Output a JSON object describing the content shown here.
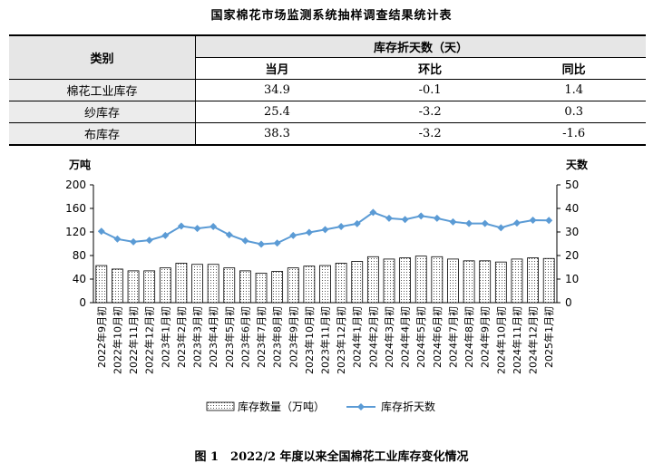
{
  "title": "国家棉花市场监测系统抽样调查结果统计表",
  "table": {
    "category_header": "类别",
    "group_header": "库存折天数（天）",
    "columns": [
      "当月",
      "环比",
      "同比"
    ],
    "rows": [
      {
        "label": "棉花工业库存",
        "current": "34.9",
        "mom": "-0.1",
        "yoy": "1.4"
      },
      {
        "label": "纱库存",
        "current": "25.4",
        "mom": "-3.2",
        "yoy": "0.3"
      },
      {
        "label": "布库存",
        "current": "38.3",
        "mom": "-3.2",
        "yoy": "-1.6"
      }
    ]
  },
  "chart_data": {
    "type": "bar",
    "left_axis_label": "万吨",
    "right_axis_label": "天数",
    "ylim_left": [
      0,
      200
    ],
    "ylim_right": [
      0,
      50
    ],
    "left_ticks": [
      0,
      40,
      80,
      120,
      160,
      200
    ],
    "right_ticks": [
      0,
      10,
      20,
      30,
      40,
      50
    ],
    "categories": [
      "2022年9月初",
      "2022年10月初",
      "2022年11月初",
      "2022年12月初",
      "2023年1月初",
      "2023年2月初",
      "2023年3月初",
      "2023年4月初",
      "2023年5月初",
      "2023年6月初",
      "2023年7月初",
      "2023年8月初",
      "2023年9月初",
      "2023年10月初",
      "2023年11月初",
      "2023年12月初",
      "2024年1月初",
      "2024年2月初",
      "2024年3月初",
      "2024年4月初",
      "2024年5月初",
      "2024年6月初",
      "2024年7月初",
      "2024年8月初",
      "2024年9月初",
      "2024年10月初",
      "2024年11月初",
      "2024年12月初",
      "2025年1月初"
    ],
    "series": [
      {
        "name": "库存数量（万吨）",
        "type": "bar",
        "axis": "left",
        "values": [
          63,
          57,
          54,
          54,
          59,
          67,
          65,
          65,
          59,
          54,
          50,
          53,
          59,
          62,
          63,
          67,
          70,
          78,
          74,
          76,
          79,
          78,
          74,
          71,
          71,
          69,
          74,
          76,
          75
        ]
      },
      {
        "name": "库存折天数",
        "type": "line",
        "axis": "right",
        "values": [
          30.3,
          27.0,
          25.8,
          26.5,
          28.5,
          32.5,
          31.5,
          32.3,
          28.8,
          26.3,
          24.8,
          25.3,
          28.5,
          29.8,
          31.0,
          32.3,
          33.5,
          38.3,
          35.8,
          35.3,
          36.8,
          35.8,
          34.3,
          33.6,
          33.6,
          31.8,
          33.8,
          35.0,
          34.9
        ]
      }
    ],
    "colors": {
      "bar_fill": "#ffffff",
      "bar_stroke": "#000000",
      "line": "#5b9bd5"
    }
  },
  "caption": "图 1　2022/2 年度以来全国棉花工业库存变化情况"
}
